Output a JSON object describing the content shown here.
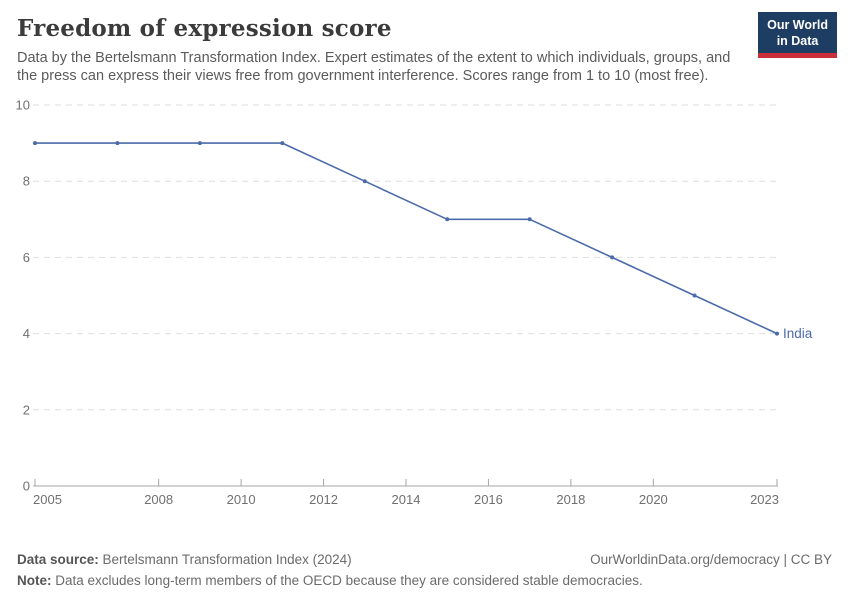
{
  "header": {
    "title": "Freedom of expression score",
    "subtitle": "Data by the Bertelsmann Transformation Index. Expert estimates of the extent to which individuals, groups, and the press can express their views free from government interference. Scores range from 1 to 10 (most free)."
  },
  "logo": {
    "line1": "Our World",
    "line2": "in Data",
    "bg_color": "#1d3d63",
    "stripe_color": "#c9303c"
  },
  "chart_data": {
    "type": "line",
    "title": "Freedom of expression score",
    "series": [
      {
        "name": "India",
        "color": "#4c6ba9",
        "x": [
          2005,
          2007,
          2009,
          2011,
          2013,
          2015,
          2017,
          2019,
          2021,
          2023
        ],
        "values": [
          9,
          9,
          9,
          9,
          8,
          7,
          7,
          6,
          5,
          4
        ]
      }
    ],
    "end_label": "India",
    "x_ticks": [
      2005,
      2008,
      2010,
      2012,
      2014,
      2016,
      2018,
      2020,
      2023
    ],
    "y_ticks": [
      0,
      2,
      4,
      6,
      8,
      10
    ],
    "xlim": [
      2005,
      2023
    ],
    "ylim": [
      0,
      10
    ],
    "grid": "horizontal-dashed",
    "legend_position": "end-of-line"
  },
  "colors": {
    "line": "#4c6ba9",
    "grid": "#dedede",
    "axis": "#a5a5a5",
    "tick_label": "#707070"
  },
  "footer": {
    "source_label": "Data source:",
    "source_text": " Bertelsmann Transformation Index (2024)",
    "right_text": "OurWorldinData.org/democracy | CC BY",
    "note_label": "Note:",
    "note_text": " Data excludes long-term members of the OECD because they are considered stable democracies."
  }
}
